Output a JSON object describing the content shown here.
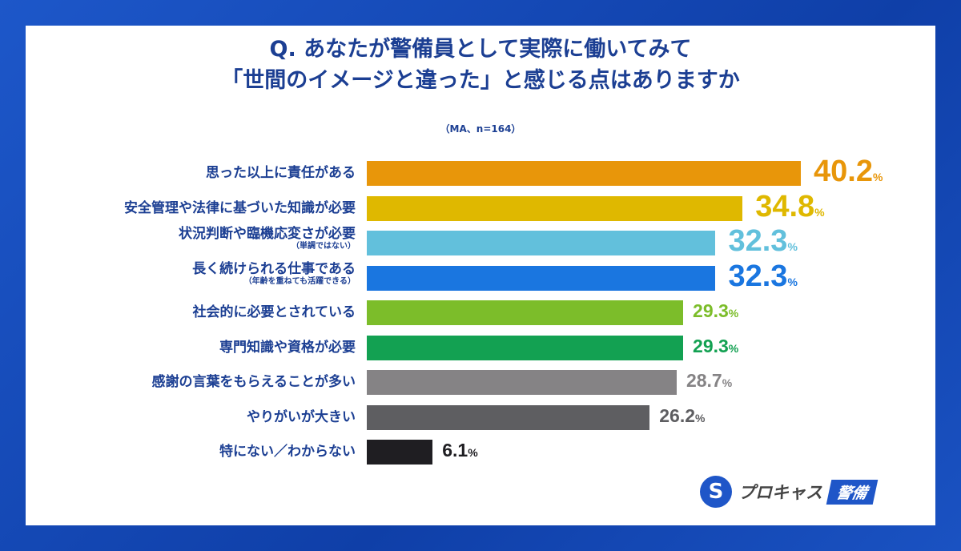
{
  "chart_data": {
    "type": "bar",
    "orientation": "horizontal",
    "title": "Q. あなたが警備員として実際に働いてみて「世間のイメージと違った」と感じる点はありますか",
    "title_lines": [
      "Q. あなたが警備員として実際に働いてみて",
      "「世間のイメージと違った」と感じる点はありますか"
    ],
    "subtitle": "（MA、n=164）",
    "unit": "%",
    "xlim": [
      0,
      40.2
    ],
    "grid": false,
    "categories": [
      {
        "label": "思った以上に責任がある",
        "note": ""
      },
      {
        "label": "安全管理や法律に基づいた知識が必要",
        "note": ""
      },
      {
        "label": "状況判断や臨機応変さが必要",
        "note": "（単調ではない）"
      },
      {
        "label": "長く続けられる仕事である",
        "note": "（年齢を重ねても活躍できる）"
      },
      {
        "label": "社会的に必要とされている",
        "note": ""
      },
      {
        "label": "専門知識や資格が必要",
        "note": ""
      },
      {
        "label": "感謝の言葉をもらえることが多い",
        "note": ""
      },
      {
        "label": "やりがいが大きい",
        "note": ""
      },
      {
        "label": "特にない／わからない",
        "note": ""
      }
    ],
    "values": [
      40.2,
      34.8,
      32.3,
      32.3,
      29.3,
      29.3,
      28.7,
      26.2,
      6.1
    ],
    "value_labels": [
      "40.2",
      "34.8",
      "32.3",
      "32.3",
      "29.3",
      "29.3",
      "28.7",
      "26.2",
      "6.1"
    ],
    "bar_colors": [
      "#e8960a",
      "#dfb800",
      "#62c0dc",
      "#1a76e0",
      "#7cbd2a",
      "#13a152",
      "#858385",
      "#5e5e61",
      "#1f1e22"
    ],
    "label_colors": [
      "#e8960a",
      "#dfb800",
      "#62c0dc",
      "#1a76e0",
      "#7cbd2a",
      "#13a152",
      "#858385",
      "#5e5e61",
      "#1f1e22"
    ]
  },
  "logo": {
    "mark": "S",
    "name": "プロキャス",
    "tag": "警備"
  }
}
